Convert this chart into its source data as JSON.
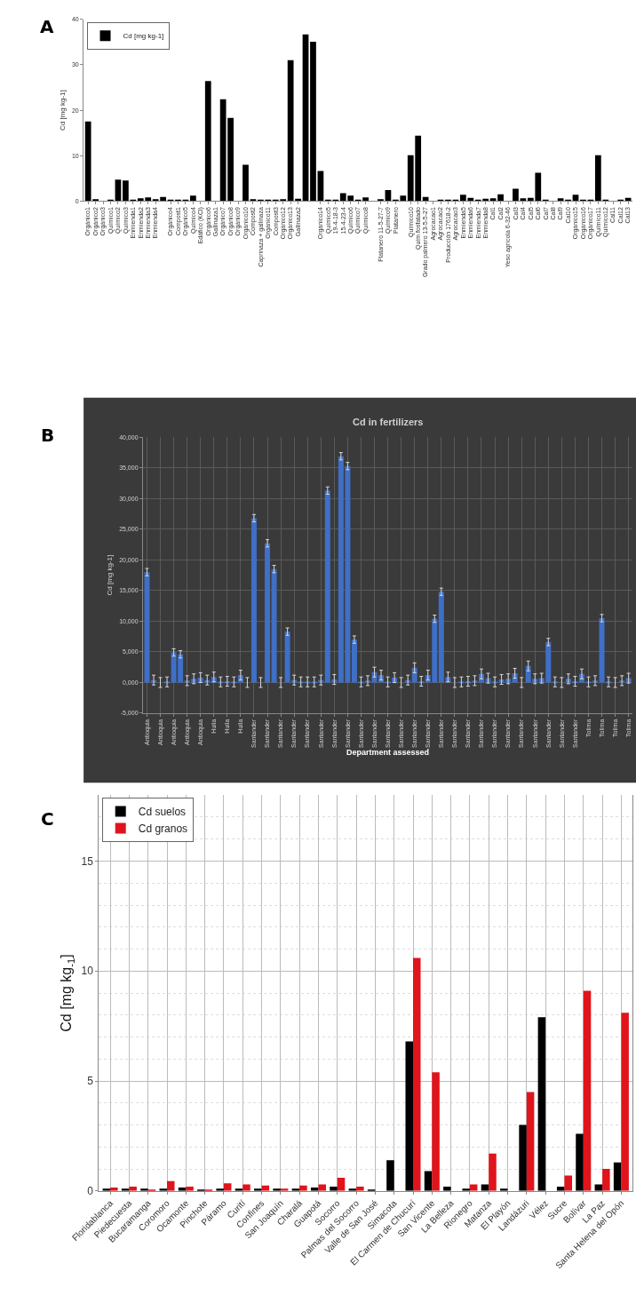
{
  "chart_data": [
    {
      "type": "bar",
      "ylabel": "Cd [mg kg-1]",
      "annotations": [
        "A"
      ],
      "legend": "top left",
      "grid": false,
      "ylim": [
        0,
        40
      ],
      "yticks": [
        0,
        10,
        20,
        30,
        40
      ],
      "categories": [
        "Orgánico1",
        "Orgánico2",
        "Orgánico3",
        "Químico1",
        "Químico2",
        "Químico3",
        "Enmienda1",
        "Enmienda2",
        "Enmienda3",
        "Enmienda4",
        null,
        "Orgánico4",
        "Compost1",
        "Orgánico5",
        "Químico4",
        "Edáfico (KCl)",
        "Orgánico6",
        "Gallinaza1",
        "Orgánico7",
        "Orgánico8",
        "Orgánico9",
        "Orgánico10",
        "Compost2",
        "Caprinaza + gallinaza",
        "Orgánico11",
        "Compost3",
        "Orgánico12",
        "Orgánico13",
        "Gallinaza2",
        null,
        null,
        "Orgánico14",
        "Químico5",
        "19-4-18-3",
        "15-4-23-4",
        "Químico6",
        "Químico7",
        "Químico8",
        null,
        "Platanero 11-5-27-7",
        "Químico9",
        "Platanero",
        null,
        "Químico10",
        "Quím fosfatado",
        "Grado palmero 13-5-5-27",
        "Agrocacao1",
        "Agrocacao2",
        "Producción 17618-2",
        "Agrocacao3",
        "Enmienda5",
        "Enmienda6",
        "Enmienda7",
        "Enmienda8",
        "Cal1",
        "Cal2",
        "Yeso agrícola 6-32-46",
        "Cal3",
        "Cal4",
        "Cal5",
        "Cal6",
        "Cal7",
        "Cal8",
        "Cal9",
        "Cal10",
        "Orgánico15",
        "Orgánico16",
        "Orgánico17",
        "Químico11",
        "Químico12",
        "Cal11",
        "Cal12",
        "Cal13"
      ],
      "series": [
        {
          "name": "Cd [mg kg-1]",
          "color": "#000000",
          "values": [
            17.5,
            0.4,
            0,
            0.1,
            4.7,
            4.5,
            0.3,
            0.6,
            0.8,
            0.4,
            0.9,
            0.1,
            0.2,
            0.1,
            1.2,
            0,
            26.4,
            0,
            22.4,
            18.3,
            0,
            8.0,
            0.4,
            0.1,
            0.1,
            0.1,
            0.4,
            31,
            0.5,
            36.7,
            35.1,
            6.6,
            0.1,
            0.3,
            1.7,
            1.2,
            0.1,
            0.8,
            0,
            0.4,
            2.4,
            0.2,
            1.2,
            10.1,
            14.4,
            0.9,
            0,
            0.1,
            0.2,
            0.3,
            1.4,
            0.7,
            0.1,
            0.5,
            0.6,
            1.5,
            0,
            2.7,
            0.6,
            0.7,
            6.2,
            0.1,
            0,
            0.6,
            0.2,
            1.4,
            0.1,
            0.3,
            10.1,
            0.1,
            0,
            0.3,
            0.7
          ]
        }
      ]
    },
    {
      "type": "bar",
      "title": "Cd in fertilizers",
      "xlabel": "Department assessed",
      "ylabel": "Cd [mg kg-1]",
      "annotations": [
        "B"
      ],
      "grid": true,
      "ylim": [
        -5000,
        40000
      ],
      "yticks": [
        {
          "value": -5000,
          "label": "-5,000"
        },
        {
          "value": 0,
          "label": "0,000"
        },
        {
          "value": 5000,
          "label": "5,000"
        },
        {
          "value": 10000,
          "label": "10,000"
        },
        {
          "value": 15000,
          "label": "15,000"
        },
        {
          "value": 20000,
          "label": "20,000"
        },
        {
          "value": 25000,
          "label": "25,000"
        },
        {
          "value": 30000,
          "label": "30,000"
        },
        {
          "value": 35000,
          "label": "35,000"
        },
        {
          "value": 40000,
          "label": "40,000"
        }
      ],
      "categories": [
        "Antioquia",
        null,
        "Antioquia",
        null,
        "Antioquia",
        null,
        "Antioquia",
        null,
        "Antioquia",
        null,
        "Huila",
        null,
        "Huila",
        null,
        "Huila",
        null,
        "Santander",
        null,
        "Santander",
        null,
        "Santander",
        null,
        "Santander",
        null,
        "Santander",
        null,
        "Santander",
        null,
        "Santander",
        null,
        "Santander",
        null,
        "Santander",
        null,
        "Santander",
        null,
        "Santander",
        null,
        "Santander",
        null,
        "Santander",
        null,
        "Santander",
        null,
        "Santander",
        null,
        "Santander",
        null,
        "Santander",
        null,
        "Santander",
        null,
        "Santander",
        null,
        "Santander",
        null,
        "Santander",
        null,
        "Santander",
        null,
        "Santander",
        null,
        "Santander",
        null,
        "Santander",
        null,
        "Tolima",
        null,
        "Tolima",
        null,
        "Tolima",
        null,
        "Tolima"
      ],
      "series": [
        {
          "color": "#3f6fc6",
          "values": [
            18000,
            400,
            0,
            100,
            4900,
            4600,
            300,
            600,
            800,
            400,
            900,
            100,
            200,
            100,
            1200,
            0,
            26800,
            0,
            22700,
            18500,
            0,
            8300,
            400,
            100,
            100,
            100,
            400,
            31300,
            500,
            36900,
            35300,
            7000,
            100,
            300,
            1700,
            1200,
            100,
            800,
            0,
            400,
            2400,
            200,
            1200,
            10400,
            14800,
            900,
            0,
            100,
            200,
            300,
            1400,
            700,
            100,
            500,
            600,
            1500,
            0,
            2700,
            600,
            700,
            6600,
            100,
            0,
            600,
            200,
            1400,
            100,
            300,
            10500,
            100,
            0,
            300,
            700
          ],
          "errors": [
            600,
            800,
            800,
            800,
            600,
            600,
            800,
            800,
            800,
            800,
            800,
            800,
            800,
            800,
            800,
            800,
            600,
            800,
            600,
            600,
            800,
            600,
            800,
            800,
            800,
            800,
            800,
            600,
            800,
            600,
            600,
            600,
            800,
            800,
            800,
            800,
            800,
            800,
            800,
            800,
            800,
            800,
            800,
            600,
            600,
            800,
            800,
            800,
            800,
            800,
            800,
            800,
            800,
            800,
            800,
            800,
            800,
            800,
            800,
            800,
            600,
            800,
            800,
            800,
            800,
            800,
            800,
            800,
            600,
            800,
            800,
            800,
            800
          ]
        }
      ]
    },
    {
      "type": "bar",
      "ylabel": "Cd [mg kg$_{-1}$]",
      "annotations": [
        "C"
      ],
      "legend": "top left",
      "grid": true,
      "ylim": [
        0,
        18
      ],
      "yticks": [
        0,
        5,
        10,
        15
      ],
      "categories": [
        "Floridablanca",
        "Piedecuesta",
        "Bucaramanga",
        "Coromoro",
        "Ocamonte",
        "Pinchote",
        "Páramo",
        "Curití",
        "Confines",
        "San Joaquín",
        "Charalá",
        "Guapotá",
        "Socorro",
        "Palmas del Socorro",
        "Valle de San José",
        "Simacota",
        "El Carmen de Chucurí",
        "San Vicente",
        "La Belleza",
        "Rionegro",
        "Matanza",
        "El Playón",
        "Landázuri",
        "Vélez",
        "Sucre",
        "Bolívar",
        "La Paz",
        "Santa Helena del Opón"
      ],
      "series": [
        {
          "name": "Cd suelos",
          "color": "#000000",
          "values": [
            0.1,
            0.1,
            0.1,
            0.1,
            0.15,
            0.05,
            0.1,
            0.1,
            0.1,
            0.1,
            0.1,
            0.15,
            0.2,
            0.1,
            0.05,
            1.4,
            6.8,
            0.9,
            0.2,
            0.1,
            0.3,
            0.1,
            3.0,
            7.9,
            0.2,
            2.6,
            0.3,
            1.3
          ]
        },
        {
          "name": "Cd granos",
          "color": "#e0141c",
          "values": [
            0.15,
            0.2,
            0.05,
            0.45,
            0.2,
            0.05,
            0.35,
            0.3,
            0.25,
            0.1,
            0.25,
            0.3,
            0.6,
            0.2,
            0,
            0,
            10.6,
            5.4,
            0,
            0.3,
            1.7,
            0,
            4.5,
            0,
            0.7,
            9.1,
            1.0,
            8.1
          ]
        }
      ]
    }
  ]
}
